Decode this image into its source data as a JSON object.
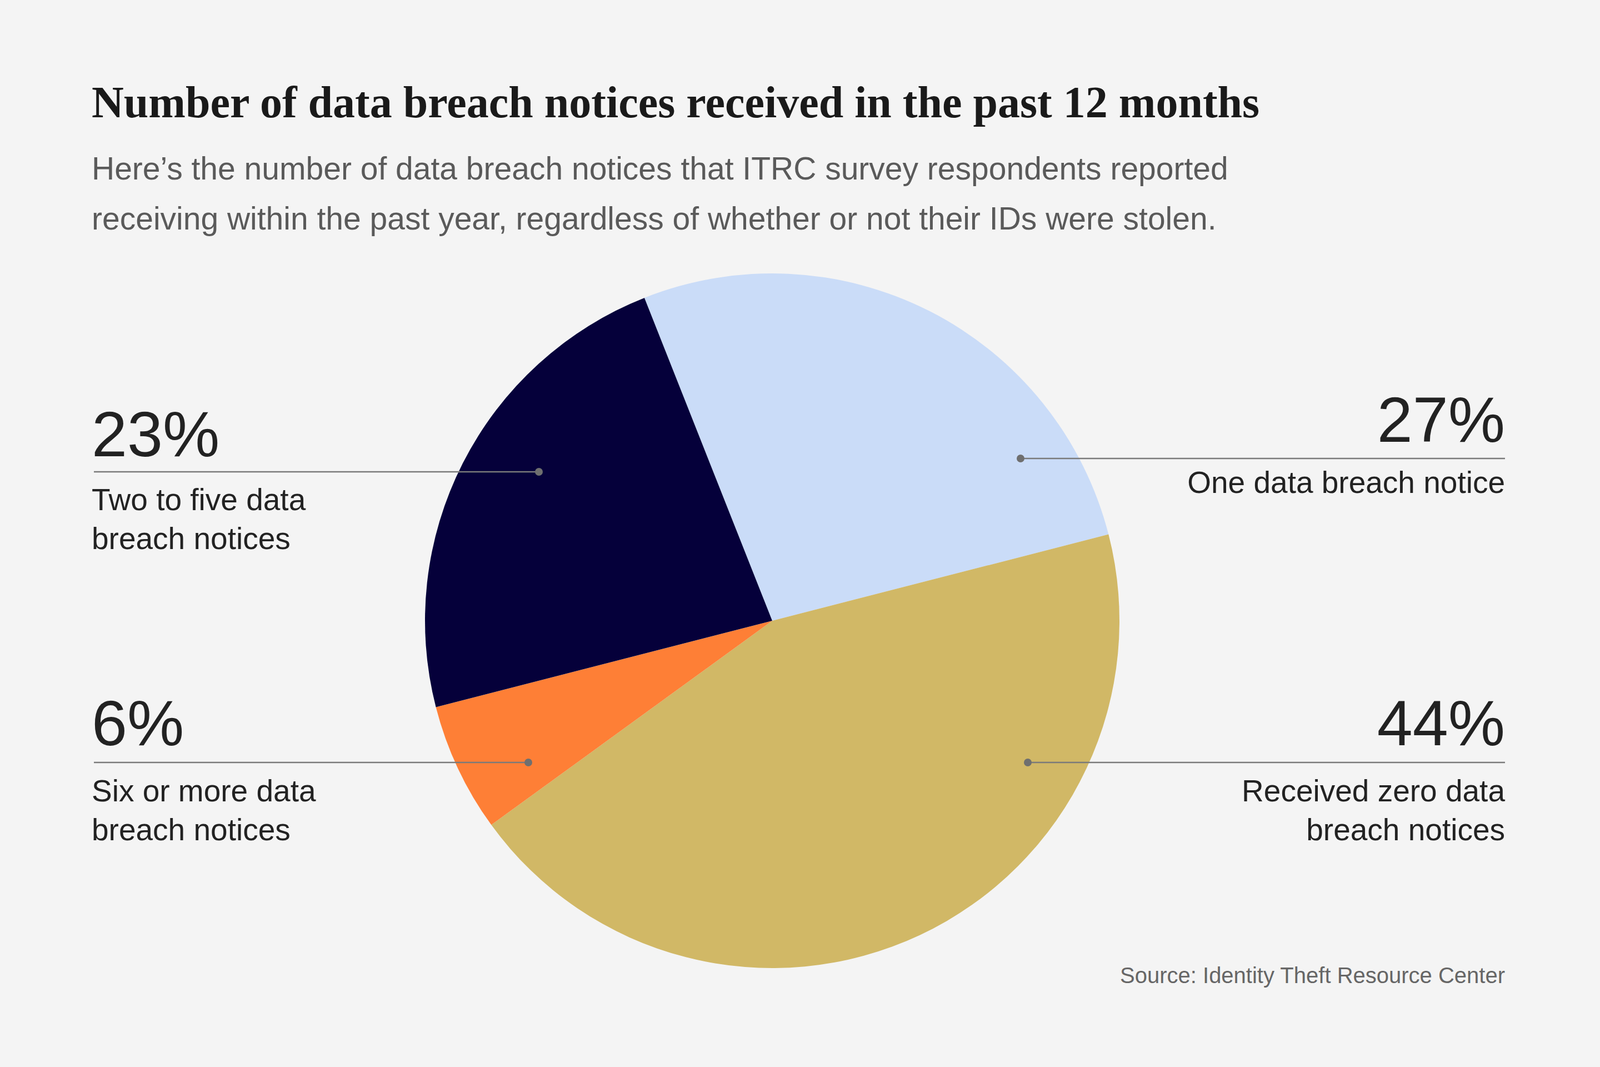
{
  "chart_data": {
    "type": "pie",
    "title": "Number of data breach notices received in the past 12 months",
    "subtitle": "Here’s the number of data breach notices that ITRC survey respondents reported\nreceiving within the past year, regardless of whether or not their IDs were stolen.",
    "categories": [
      "One data breach notice",
      "Received zero data\nbreach notices",
      "Six or more data\nbreach notices",
      "Two to five data\nbreach notices"
    ],
    "values": [
      27,
      44,
      6,
      23
    ],
    "value_labels": [
      "27%",
      "44%",
      "6%",
      "23%"
    ],
    "colors": [
      "#cadcf8",
      "#d1b866",
      "#fe7f36",
      "#05003a"
    ],
    "data_labels": true,
    "source": "Source: Identity Theft Resource Center"
  }
}
